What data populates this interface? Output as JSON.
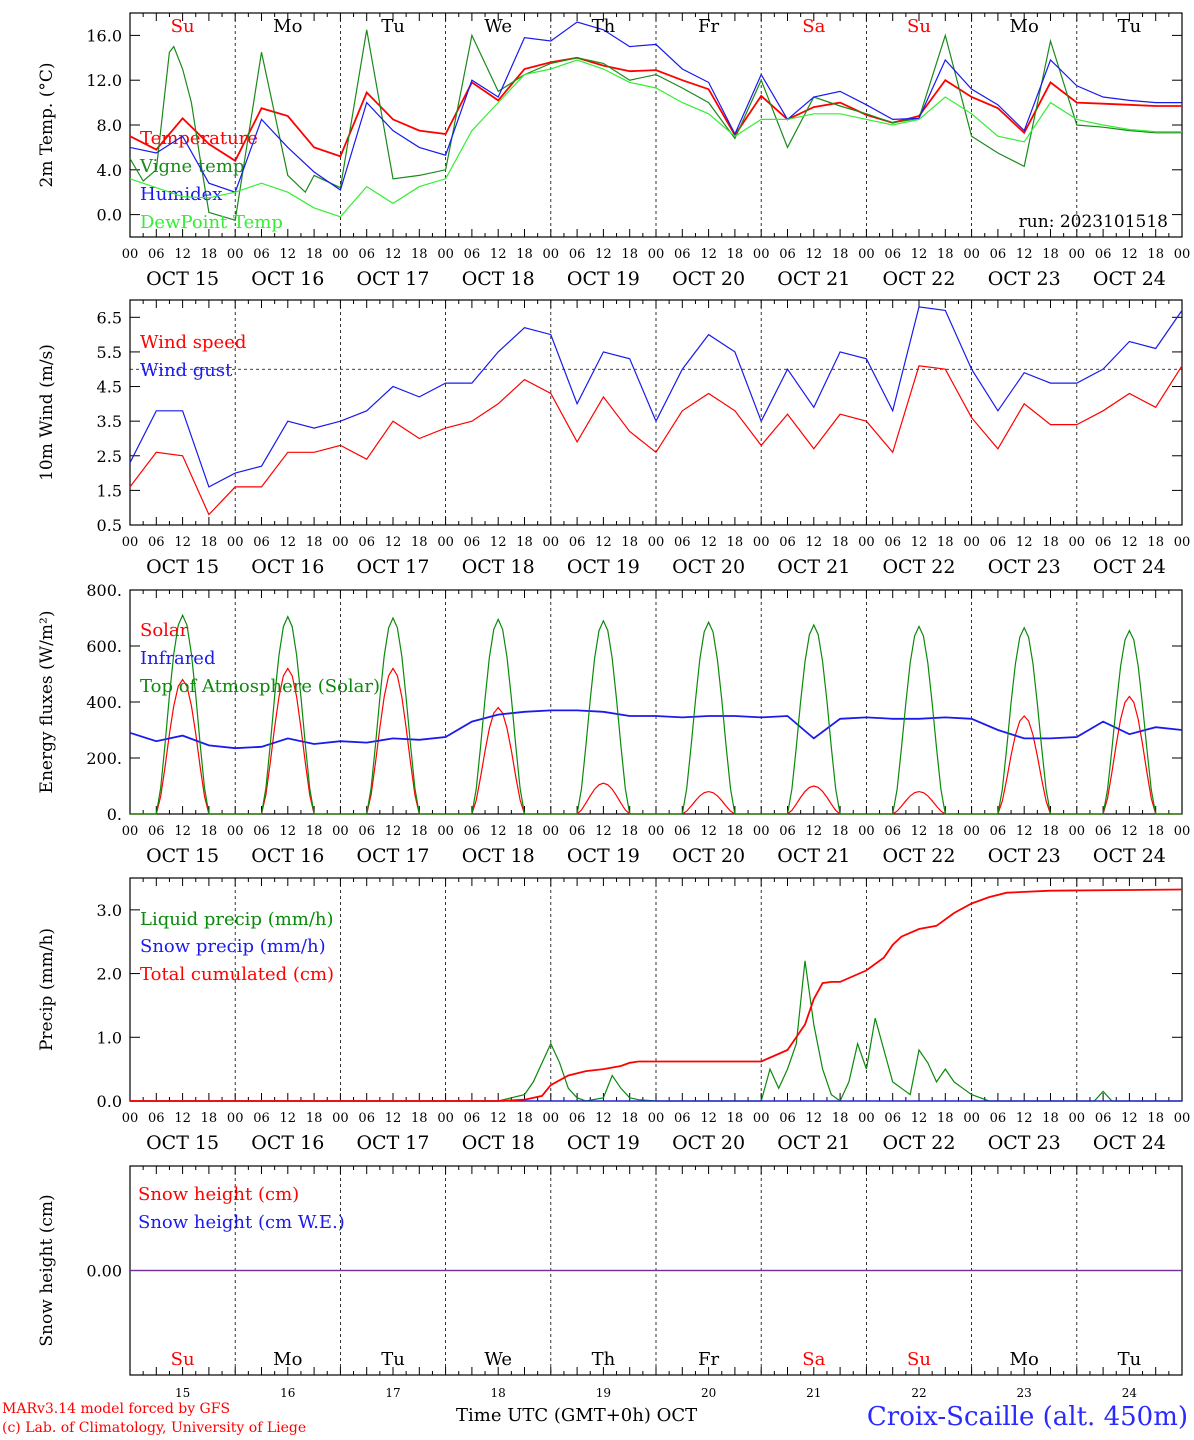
{
  "colors": {
    "red": "#ff0000",
    "dkgreen": "#1a8a1a",
    "ltgreen": "#33ee33",
    "blue": "#1a1aee",
    "green": "#0a8a0a",
    "purple": "#7030a0"
  },
  "days": {
    "names": [
      "Su",
      "Mo",
      "Tu",
      "We",
      "Th",
      "Fr",
      "Sa",
      "Su",
      "Mo",
      "Tu"
    ],
    "weekend": [
      true,
      false,
      false,
      false,
      false,
      false,
      true,
      true,
      false,
      false
    ],
    "dates": [
      "OCT 15",
      "OCT 16",
      "OCT 17",
      "OCT 18",
      "OCT 19",
      "OCT 20",
      "OCT 21",
      "OCT 22",
      "OCT 23",
      "OCT 24"
    ],
    "numbers": [
      "15",
      "16",
      "17",
      "18",
      "19",
      "20",
      "21",
      "22",
      "23",
      "24"
    ],
    "hour_ticks": [
      "00",
      "06",
      "12",
      "18"
    ],
    "end_tick": "00"
  },
  "run_label": "run: 2023101518",
  "footer": {
    "model": "MARv3.14 model forced by GFS",
    "copyright": "(c) Lab. of Climatology, University of Liege",
    "xlabel": "Time UTC (GMT+0h) OCT",
    "station": "Croix-Scaille (alt. 450m)"
  },
  "chart_data": [
    {
      "type": "line",
      "ylabel": "2m Temp. (°C)",
      "ylim": [
        -2,
        18
      ],
      "yticks": [
        "0.0",
        "4.0",
        "8.0",
        "12.0",
        "16.0"
      ],
      "ytick_values": [
        0,
        4,
        8,
        12,
        16
      ],
      "series": [
        {
          "name": "Temperature",
          "color": "red",
          "x": [
            0,
            6,
            12,
            18,
            24,
            30,
            36,
            42,
            48,
            54,
            60,
            66,
            72,
            78,
            84,
            90,
            96,
            102,
            108,
            114,
            120,
            126,
            132,
            138,
            144,
            150,
            156,
            162,
            168,
            174,
            180,
            186,
            192,
            198,
            204,
            210,
            216,
            222,
            228,
            234,
            240
          ],
          "y": [
            7,
            5.8,
            8.6,
            6.3,
            4.8,
            9.5,
            8.8,
            6.0,
            5.2,
            10.9,
            8.5,
            7.5,
            7.2,
            11.8,
            10.2,
            13.0,
            13.6,
            14.0,
            13.3,
            12.8,
            12.9,
            12.0,
            11.2,
            7.1,
            10.6,
            8.5,
            9.6,
            10.0,
            8.9,
            8.2,
            8.8,
            12.0,
            10.5,
            9.5,
            7.3,
            11.8,
            10.0,
            9.9,
            9.8,
            9.7,
            9.7
          ]
        },
        {
          "name": "Vigne temp",
          "color": "dkgreen",
          "x": [
            0,
            3,
            6,
            9,
            10,
            12,
            14,
            16,
            18,
            24,
            30,
            36,
            40,
            42,
            48,
            54,
            60,
            66,
            72,
            78,
            84,
            90,
            96,
            102,
            108,
            114,
            120,
            126,
            132,
            138,
            144,
            150,
            156,
            162,
            168,
            174,
            180,
            186,
            192,
            198,
            204,
            210,
            216,
            222,
            228,
            234,
            240
          ],
          "y": [
            5,
            3,
            4,
            14.5,
            15,
            13,
            10,
            5,
            0.2,
            -0.5,
            14.5,
            3.5,
            2.0,
            3.5,
            2.4,
            16.5,
            3.2,
            3.5,
            4.0,
            16,
            11,
            12.5,
            13.5,
            14.0,
            13.5,
            12,
            12.5,
            11.3,
            10.0,
            6.8,
            12.0,
            6.0,
            10.5,
            9.7,
            9.0,
            8.2,
            8.6,
            16.0,
            7.0,
            5.5,
            4.3,
            15.5,
            8.0,
            7.8,
            7.5,
            7.3,
            7.3
          ]
        },
        {
          "name": "Humidex",
          "color": "blue",
          "x": [
            0,
            6,
            12,
            18,
            24,
            30,
            36,
            42,
            48,
            54,
            60,
            66,
            72,
            78,
            84,
            90,
            96,
            102,
            108,
            114,
            120,
            126,
            132,
            138,
            144,
            150,
            156,
            162,
            168,
            174,
            180,
            186,
            192,
            198,
            204,
            210,
            216,
            222,
            228,
            234,
            240
          ],
          "y": [
            6,
            5.5,
            7.0,
            2.8,
            2.0,
            8.5,
            6.0,
            3.8,
            2.2,
            10.0,
            7.5,
            6.0,
            5.3,
            12.0,
            10.5,
            15.8,
            15.5,
            17.2,
            16.5,
            15.0,
            15.2,
            13.0,
            11.8,
            7.2,
            12.5,
            8.5,
            10.5,
            11.0,
            9.8,
            8.5,
            8.6,
            13.8,
            11.2,
            9.8,
            7.5,
            13.8,
            11.5,
            10.5,
            10.2,
            10.0,
            10.0
          ]
        },
        {
          "name": "DewPoint Temp",
          "color": "ltgreen",
          "x": [
            0,
            6,
            12,
            18,
            24,
            30,
            36,
            42,
            48,
            54,
            60,
            66,
            72,
            78,
            84,
            90,
            96,
            102,
            108,
            114,
            120,
            126,
            132,
            138,
            144,
            150,
            156,
            162,
            168,
            174,
            180,
            186,
            192,
            198,
            204,
            210,
            216,
            222,
            228,
            234,
            240
          ],
          "y": [
            3.2,
            2.4,
            1.6,
            1.5,
            2.0,
            2.8,
            2.0,
            0.6,
            -0.2,
            2.5,
            1.0,
            2.5,
            3.2,
            7.5,
            10.0,
            12.5,
            13.0,
            13.8,
            13.0,
            11.8,
            11.3,
            10.0,
            9.0,
            7.0,
            8.5,
            8.5,
            9.0,
            9.0,
            8.5,
            8.0,
            8.5,
            10.5,
            9.0,
            7.0,
            6.5,
            10.0,
            8.5,
            8.0,
            7.6,
            7.4,
            7.4
          ]
        }
      ]
    },
    {
      "type": "line",
      "ylabel": "10m Wind (m/s)",
      "ylim": [
        0.5,
        7.0
      ],
      "yticks": [
        "0.5",
        "1.5",
        "2.5",
        "3.5",
        "4.5",
        "5.5",
        "6.5"
      ],
      "ytick_values": [
        0.5,
        1.5,
        2.5,
        3.5,
        4.5,
        5.5,
        6.5
      ],
      "reference_line": 5.0,
      "series": [
        {
          "name": "Wind speed",
          "color": "red",
          "x": [
            0,
            6,
            12,
            18,
            24,
            30,
            36,
            42,
            48,
            54,
            60,
            66,
            72,
            78,
            84,
            90,
            96,
            102,
            108,
            114,
            120,
            126,
            132,
            138,
            144,
            150,
            156,
            162,
            168,
            174,
            180,
            186,
            192,
            198,
            204,
            210,
            216,
            222,
            228,
            234,
            240
          ],
          "y": [
            1.6,
            2.6,
            2.5,
            0.8,
            1.6,
            1.6,
            2.6,
            2.6,
            2.8,
            2.4,
            3.5,
            3.0,
            3.3,
            3.5,
            4.0,
            4.7,
            4.3,
            2.9,
            4.2,
            3.2,
            2.6,
            3.8,
            4.3,
            3.8,
            2.8,
            3.7,
            2.7,
            3.7,
            3.5,
            2.6,
            5.1,
            5.0,
            3.6,
            2.7,
            4.0,
            3.4,
            3.4,
            3.8,
            4.3,
            3.9,
            5.1
          ]
        },
        {
          "name": "Wind gust",
          "color": "blue",
          "x": [
            0,
            6,
            12,
            18,
            24,
            30,
            36,
            42,
            48,
            54,
            60,
            66,
            72,
            78,
            84,
            90,
            96,
            102,
            108,
            114,
            120,
            126,
            132,
            138,
            144,
            150,
            156,
            162,
            168,
            174,
            180,
            186,
            192,
            198,
            204,
            210,
            216,
            222,
            228,
            234,
            240
          ],
          "y": [
            2.3,
            3.8,
            3.8,
            1.6,
            2.0,
            2.2,
            3.5,
            3.3,
            3.5,
            3.8,
            4.5,
            4.2,
            4.6,
            4.6,
            5.5,
            6.2,
            6.0,
            4.0,
            5.5,
            5.3,
            3.5,
            5.0,
            6.0,
            5.5,
            3.5,
            5.0,
            3.9,
            5.5,
            5.3,
            3.8,
            6.8,
            6.7,
            5.0,
            3.8,
            4.9,
            4.6,
            4.6,
            5.0,
            5.8,
            5.6,
            6.7
          ]
        }
      ]
    },
    {
      "type": "line",
      "ylabel": "Energy fluxes (W/m²)",
      "ylim": [
        0,
        800
      ],
      "yticks": [
        "0.",
        "200.",
        "400.",
        "600.",
        "800."
      ],
      "ytick_values": [
        0,
        200,
        400,
        600,
        800
      ],
      "series": [
        {
          "name": "Solar",
          "color": "red",
          "peaks": [
            480,
            520,
            520,
            380,
            110,
            80,
            100,
            80,
            350,
            420
          ]
        },
        {
          "name": "Infrared",
          "color": "blue",
          "x": [
            0,
            6,
            12,
            18,
            24,
            30,
            36,
            42,
            48,
            54,
            60,
            66,
            72,
            78,
            84,
            90,
            96,
            102,
            108,
            114,
            120,
            126,
            132,
            138,
            144,
            150,
            156,
            162,
            168,
            174,
            180,
            186,
            192,
            198,
            204,
            210,
            216,
            222,
            228,
            234,
            240
          ],
          "y": [
            290,
            260,
            280,
            245,
            235,
            240,
            270,
            250,
            260,
            255,
            270,
            265,
            275,
            330,
            355,
            365,
            370,
            370,
            365,
            350,
            350,
            345,
            350,
            350,
            345,
            350,
            270,
            340,
            345,
            340,
            340,
            345,
            340,
            300,
            270,
            270,
            275,
            330,
            285,
            310,
            300
          ]
        },
        {
          "name": "Top of Atmosphere (Solar)",
          "color": "green",
          "peaks": [
            710,
            705,
            700,
            695,
            690,
            685,
            675,
            670,
            665,
            655
          ]
        }
      ]
    },
    {
      "type": "line",
      "ylabel": "Precip (mm/h)",
      "ylim": [
        0,
        3.5
      ],
      "yticks": [
        "0.0",
        "1.0",
        "2.0",
        "3.0"
      ],
      "ytick_values": [
        0,
        1,
        2,
        3
      ],
      "series": [
        {
          "name": "Liquid precip (mm/h)",
          "color": "green",
          "x": [
            0,
            72,
            84,
            90,
            92,
            96,
            98,
            100,
            102,
            104,
            108,
            110,
            112,
            114,
            116,
            118,
            120,
            144,
            146,
            148,
            150,
            152,
            154,
            156,
            158,
            160,
            162,
            164,
            166,
            168,
            170,
            172,
            174,
            176,
            178,
            180,
            182,
            184,
            186,
            188,
            190,
            192,
            194,
            196,
            198,
            200,
            216,
            220,
            222,
            224,
            240
          ],
          "y": [
            0,
            0,
            0,
            0.1,
            0.3,
            0.9,
            0.6,
            0.2,
            0.05,
            0,
            0.05,
            0.4,
            0.2,
            0.05,
            0.02,
            0.01,
            0,
            0,
            0.5,
            0.2,
            0.5,
            0.9,
            2.2,
            1.2,
            0.5,
            0.1,
            0,
            0.3,
            0.9,
            0.5,
            1.3,
            0.8,
            0.3,
            0.2,
            0.1,
            0.8,
            0.6,
            0.3,
            0.5,
            0.3,
            0.2,
            0.1,
            0.05,
            0,
            0,
            0,
            0,
            0,
            0.15,
            0,
            0
          ]
        },
        {
          "name": "Snow precip (mm/h)",
          "color": "blue",
          "x": [
            0,
            240
          ],
          "y": [
            0,
            0
          ]
        },
        {
          "name": "Total cumulated (cm)",
          "color": "red",
          "x": [
            0,
            84,
            90,
            94,
            96,
            100,
            104,
            108,
            112,
            114,
            116,
            144,
            150,
            154,
            156,
            158,
            160,
            162,
            168,
            172,
            174,
            176,
            180,
            184,
            188,
            192,
            196,
            200,
            210,
            240
          ],
          "y": [
            0,
            0,
            0.02,
            0.08,
            0.25,
            0.4,
            0.47,
            0.5,
            0.55,
            0.6,
            0.62,
            0.62,
            0.8,
            1.2,
            1.6,
            1.85,
            1.87,
            1.87,
            2.05,
            2.25,
            2.45,
            2.58,
            2.7,
            2.75,
            2.95,
            3.1,
            3.2,
            3.27,
            3.3,
            3.32
          ]
        }
      ]
    },
    {
      "type": "line",
      "ylabel": "Snow height (cm)",
      "ylim": [
        -1,
        1
      ],
      "yticks": [
        "0.00"
      ],
      "ytick_values": [
        0
      ],
      "series": [
        {
          "name": "Snow height (cm)",
          "color": "red",
          "x": [
            0,
            240
          ],
          "y": [
            0,
            0
          ]
        },
        {
          "name": "Snow height (cm W.E.)",
          "color": "blue",
          "x": [
            0,
            240
          ],
          "y": [
            0,
            0
          ]
        }
      ]
    }
  ]
}
